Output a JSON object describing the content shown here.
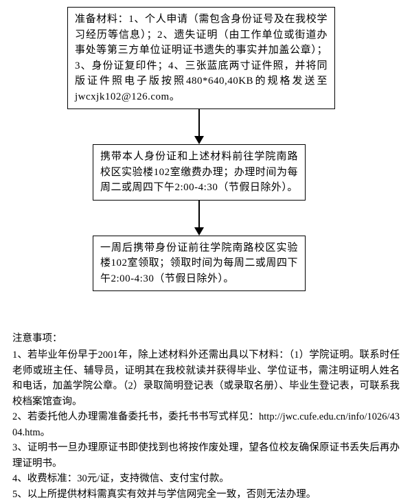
{
  "flowchart": {
    "box1": "准备材料：1、个人申请（需包含身份证号及在我校学习经历等信息）；2、遗失证明（由工作单位或街道办事处等第三方单位证明证书遗失的事实并加盖公章）；3、身份证复印件；4、三张蓝底两寸证件照，并将同版证件照电子版按照480*640,40KB的规格发送至jwcxjk102@126.com。",
    "box2": "携带本人身份证和上述材料前往学院南路校区实验楼102室缴费办理；办理时间为每周二或周四下午2:00-4:30（节假日除外）。",
    "box3": "一周后携带身份证前往学院南路校区实验楼102室领取；领取时间为每周二或周四下午2:00-4:30（节假日除外）。"
  },
  "notes": {
    "title": "注意事项：",
    "items": [
      "1、若毕业年份早于2001年，除上述材料外还需出具以下材料：（1）学院证明。联系时任老师或班主任、辅导员，证明其在我校就读并获得毕业、学位证书，需注明证明人姓名和电话，加盖学院公章。（2）录取简明登记表（或录取名册）、毕业生登记表，可联系我校档案馆查询。",
      "2、若委托他人办理需准备委托书，委托书书写式样见：http://jwc.cufe.edu.cn/info/1026/4304.htm。",
      "3、证明书一旦办理原证书即使找到也将按作废处理，望各位校友确保原证书丢失后再办理证明书。",
      "4、收费标准：30元/证，支持微信、支付宝付款。",
      "5、以上所提供材料需真实有效并与学信网完全一致，否则无法办理。"
    ]
  },
  "style": {
    "background_color": "#ffffff",
    "border_color": "#000000",
    "text_color": "#000000",
    "font_family": "SimSun",
    "box_fontsize": 15,
    "notes_fontsize": 14.5,
    "arrow_color": "#000000"
  }
}
